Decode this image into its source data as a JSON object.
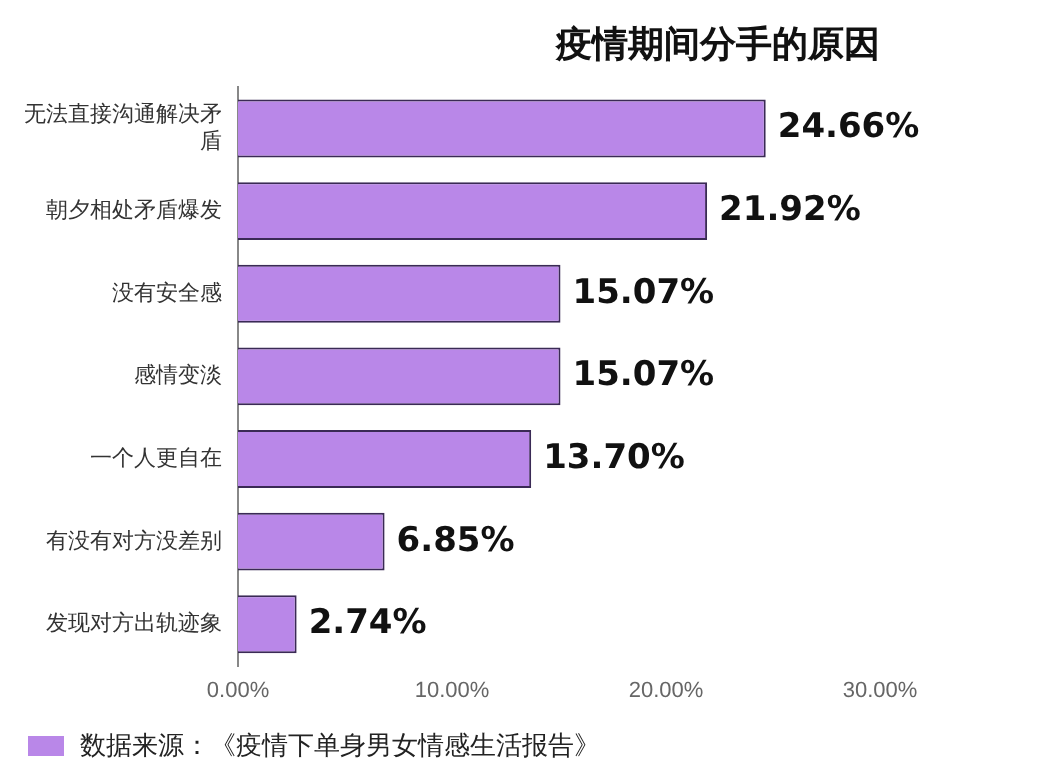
{
  "chart_data": {
    "type": "bar",
    "orientation": "horizontal",
    "title": "疫情期间分手的原因",
    "categories": [
      "无法直接沟通解决矛盾",
      "朝夕相处矛盾爆发",
      "没有安全感",
      "感情变淡",
      "一个人更自在",
      "有没有对方没差别",
      "发现对方出轨迹象"
    ],
    "values": [
      24.66,
      21.92,
      15.07,
      15.07,
      13.7,
      6.85,
      2.74
    ],
    "value_labels": [
      "24.66%",
      "21.92%",
      "15.07%",
      "15.07%",
      "13.70%",
      "6.85%",
      "2.74%"
    ],
    "color": "#b987e8",
    "xlim": [
      0,
      30
    ],
    "xticks": [
      {
        "value": 0,
        "label": "0.00%"
      },
      {
        "value": 10,
        "label": "10.00%"
      },
      {
        "value": 20,
        "label": "20.00%"
      },
      {
        "value": 30,
        "label": "30.00%"
      }
    ],
    "grid": false,
    "annotations": [
      "数据来源：《疫情下单身男女情感生活报告》"
    ]
  }
}
